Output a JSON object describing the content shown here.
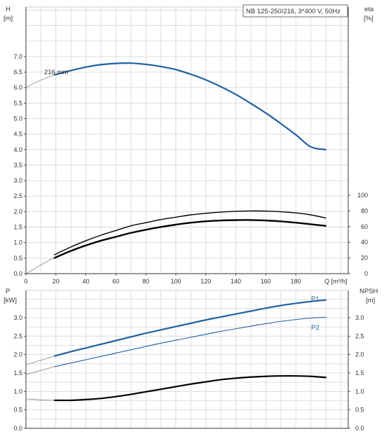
{
  "chart_data": [
    {
      "type": "line",
      "title_box": "NB 125-250/216, 3*400 V, 50Hz",
      "left_axis_label": [
        "H",
        "[m]"
      ],
      "right_axis_label": [
        "eta",
        "[%]"
      ],
      "x_label": "Q [m³/h]",
      "x_ticks": [
        "0",
        "20",
        "40",
        "60",
        "80",
        "100",
        "120",
        "140",
        "160",
        "180"
      ],
      "xlim": [
        0,
        215
      ],
      "left_ticks": [
        "0.0",
        "0.5",
        "1.0",
        "1.5",
        "2.0",
        "2.5",
        "3.0",
        "3.5",
        "4.0",
        "4.5",
        "5.0",
        "5.5",
        "6.0",
        "6.5",
        "7.0"
      ],
      "ylim": [
        0,
        8.6
      ],
      "right_ticks": [
        "0",
        "20",
        "40",
        "60",
        "80",
        "100"
      ],
      "right_ylim": [
        0,
        100
      ],
      "grid": true,
      "annotation": "216 mm",
      "series": [
        {
          "axis": "left",
          "color": "#1f5fa0",
          "width": 2.2,
          "x": [
            19,
            30,
            40,
            50,
            60,
            70,
            80,
            90,
            100,
            110,
            120,
            130,
            140,
            150,
            160,
            170,
            180,
            190,
            200
          ],
          "y": [
            6.41,
            6.55,
            6.66,
            6.74,
            6.78,
            6.79,
            6.75,
            6.68,
            6.58,
            6.43,
            6.25,
            6.03,
            5.78,
            5.49,
            5.18,
            4.84,
            4.48,
            4.09,
            4.0
          ]
        },
        {
          "axis": "left",
          "color": "#888888",
          "width": 0.8,
          "x": [
            0,
            5,
            10,
            15,
            19
          ],
          "y": [
            6.0,
            6.13,
            6.24,
            6.34,
            6.41
          ]
        },
        {
          "axis": "right",
          "color": "#000000",
          "width": 1.4,
          "x": [
            19,
            30,
            40,
            50,
            60,
            70,
            80,
            90,
            100,
            110,
            120,
            130,
            140,
            150,
            160,
            170,
            180,
            190,
            200
          ],
          "y": [
            24,
            34,
            42,
            49,
            55,
            61,
            65,
            69,
            72,
            75,
            77,
            78.5,
            79.5,
            80,
            79.8,
            79,
            77.5,
            75,
            71
          ]
        },
        {
          "axis": "right",
          "color": "#000000",
          "width": 2.4,
          "x": [
            19,
            30,
            40,
            50,
            60,
            70,
            80,
            90,
            100,
            110,
            120,
            130,
            140,
            150,
            160,
            170,
            180,
            190,
            200
          ],
          "y": [
            20,
            29,
            36,
            42,
            47,
            52,
            56,
            59.5,
            62.5,
            65,
            66.8,
            67.8,
            68.3,
            68.4,
            67.8,
            66.7,
            65,
            63,
            61
          ]
        },
        {
          "axis": "right",
          "color": "#888888",
          "width": 0.8,
          "x": [
            0,
            19
          ],
          "y": [
            0,
            21
          ]
        }
      ]
    },
    {
      "type": "line",
      "left_axis_label": [
        "P",
        "[kW]"
      ],
      "right_axis_label": [
        "NPSH",
        "[m]"
      ],
      "left_ticks": [
        "0.0",
        "0.5",
        "1.0",
        "1.5",
        "2.0",
        "2.5",
        "3.0"
      ],
      "ylim": [
        0,
        3.55
      ],
      "right_ticks": [
        "0.0",
        "0.5",
        "1.0",
        "1.5",
        "2.0",
        "2.5",
        "3.0"
      ],
      "right_ylim": [
        0,
        3.55
      ],
      "grid": true,
      "series": [
        {
          "name": "P1",
          "axis": "left",
          "color": "#1f5fa0",
          "width": 2.2,
          "x": [
            19,
            30,
            40,
            50,
            60,
            70,
            80,
            90,
            100,
            110,
            120,
            130,
            140,
            150,
            160,
            170,
            180,
            190,
            200
          ],
          "y": [
            1.96,
            2.08,
            2.18,
            2.28,
            2.38,
            2.48,
            2.58,
            2.67,
            2.76,
            2.85,
            2.94,
            3.02,
            3.1,
            3.18,
            3.26,
            3.33,
            3.39,
            3.44,
            3.48
          ]
        },
        {
          "name": "P2",
          "axis": "left",
          "color": "#1f5fa0",
          "width": 1.1,
          "x": [
            19,
            30,
            40,
            50,
            60,
            70,
            80,
            90,
            100,
            110,
            120,
            130,
            140,
            150,
            160,
            170,
            180,
            190,
            200
          ],
          "y": [
            1.67,
            1.77,
            1.86,
            1.95,
            2.04,
            2.13,
            2.22,
            2.31,
            2.39,
            2.47,
            2.55,
            2.63,
            2.7,
            2.77,
            2.84,
            2.9,
            2.95,
            2.99,
            3.01
          ]
        },
        {
          "axis": "left",
          "color": "#888888",
          "width": 0.8,
          "x": [
            0,
            19
          ],
          "y": [
            1.72,
            1.96
          ]
        },
        {
          "axis": "left",
          "color": "#888888",
          "width": 0.8,
          "x": [
            0,
            19
          ],
          "y": [
            1.46,
            1.67
          ]
        },
        {
          "axis": "right",
          "color": "#000000",
          "width": 2.2,
          "x": [
            19,
            30,
            40,
            50,
            60,
            70,
            80,
            90,
            100,
            110,
            120,
            130,
            140,
            150,
            160,
            170,
            180,
            190,
            200
          ],
          "y": [
            0.76,
            0.76,
            0.78,
            0.81,
            0.86,
            0.92,
            0.99,
            1.06,
            1.13,
            1.2,
            1.26,
            1.32,
            1.36,
            1.39,
            1.41,
            1.42,
            1.42,
            1.41,
            1.38
          ]
        },
        {
          "axis": "right",
          "color": "#888888",
          "width": 0.8,
          "x": [
            0,
            10,
            19
          ],
          "y": [
            0.8,
            0.77,
            0.76
          ]
        }
      ]
    }
  ]
}
